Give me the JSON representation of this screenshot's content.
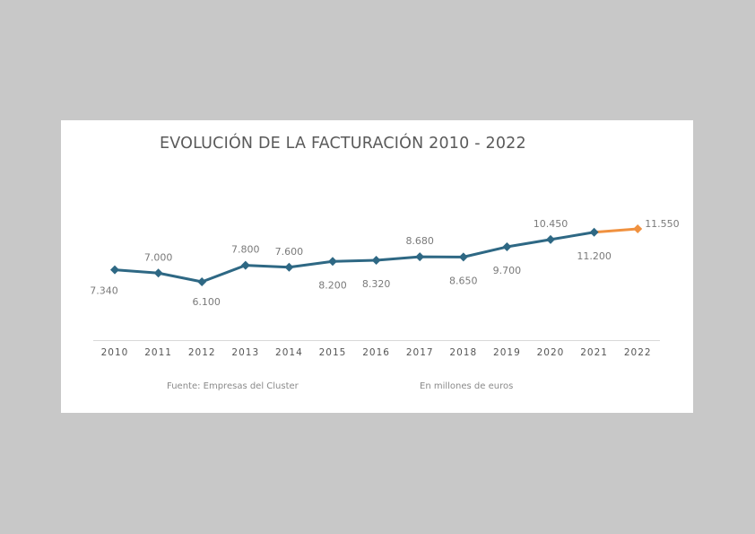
{
  "chart_data": {
    "type": "line",
    "title": "EVOLUCIÓN DE LA FACTURACIÓN 2010 - 2022",
    "xlabel": "",
    "ylabel": "",
    "categories": [
      "2010",
      "2011",
      "2012",
      "2013",
      "2014",
      "2015",
      "2016",
      "2017",
      "2018",
      "2019",
      "2020",
      "2021",
      "2022"
    ],
    "series": [
      {
        "name": "Facturación",
        "values": [
          7340,
          7000,
          6100,
          7800,
          7600,
          8200,
          8320,
          8680,
          8650,
          9700,
          10450,
          11200,
          11550
        ],
        "labels": [
          "7.340",
          "7.000",
          "6.100",
          "7.800",
          "7.600",
          "8.200",
          "8.320",
          "8.680",
          "8.650",
          "9.700",
          "10.450",
          "11.200",
          "11.550"
        ],
        "label_position": [
          "below",
          "above",
          "below",
          "above",
          "above",
          "below",
          "below",
          "above",
          "below",
          "below",
          "above",
          "below",
          "right"
        ],
        "color": "#2e6884",
        "highlight_last_segment_color": "#f0913f"
      }
    ],
    "grid": false,
    "legend": "none",
    "source": "Fuente: Empresas del Cluster",
    "units_note": "En millones de euros"
  }
}
